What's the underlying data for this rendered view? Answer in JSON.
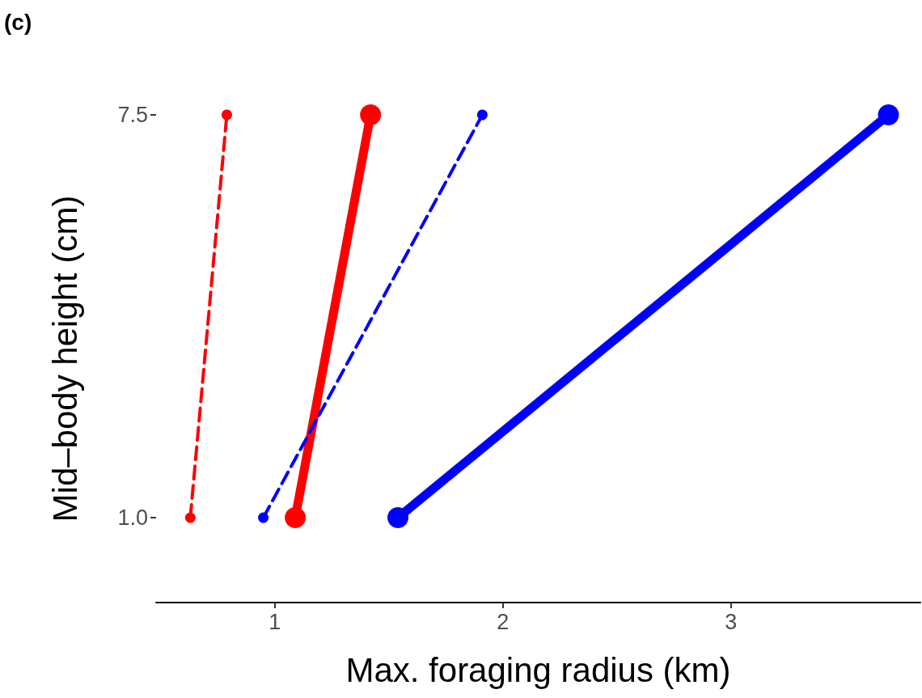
{
  "chart_data": {
    "type": "line",
    "title": "(c)",
    "xlabel": "Max. foraging radius (km)",
    "ylabel": "Mid–body height (cm)",
    "xlim": [
      0.48,
      3.83
    ],
    "xticks": [
      1,
      2,
      3
    ],
    "ylim": [
      -0.37,
      7.5
    ],
    "yticks": [
      {
        "value": 1,
        "label": "1.0"
      },
      {
        "value": 7.5,
        "label": "7.5"
      }
    ],
    "grid": false,
    "marker": "circle",
    "series": [
      {
        "color": "#ff0000",
        "line_style": "dashed",
        "x": [
          0.63,
          0.79
        ],
        "values": [
          1,
          7.5
        ]
      },
      {
        "color": "#ff0000",
        "line_style": "solid",
        "x": [
          1.09,
          1.42
        ],
        "values": [
          1,
          7.5
        ]
      },
      {
        "color": "#0000ff",
        "line_style": "dashed",
        "x": [
          0.95,
          1.91
        ],
        "values": [
          1,
          7.5
        ]
      },
      {
        "color": "#0000ff",
        "line_style": "solid",
        "x": [
          1.54,
          3.69
        ],
        "values": [
          1,
          7.5
        ]
      }
    ]
  }
}
